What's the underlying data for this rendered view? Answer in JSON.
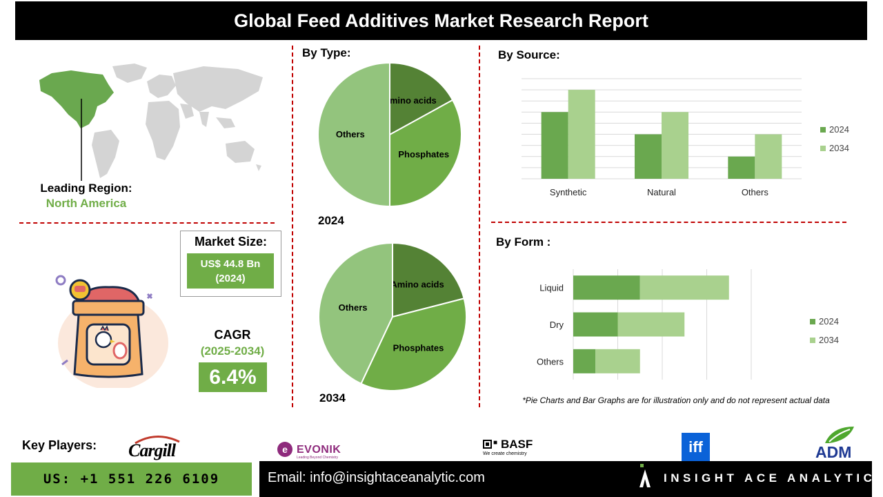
{
  "title": "Global Feed Additives Market Research Report",
  "region": {
    "label": "Leading Region:",
    "value": "North America"
  },
  "market_size": {
    "label": "Market Size:",
    "value": "US$ 44.8 Bn",
    "year": "(2024)"
  },
  "cagr": {
    "label": "CAGR",
    "period": "(2025-2034)",
    "value": "6.4%"
  },
  "sections": {
    "by_type": "By Type:",
    "by_source": "By Source:",
    "by_form": "By Form :"
  },
  "disclaimer": "*Pie Charts and Bar Graphs are for illustration only and do not represent actual data",
  "key_players": {
    "label": "Key Players:",
    "logos": [
      {
        "name": "Cargill",
        "text": "Cargill"
      },
      {
        "name": "Evonik",
        "text": "EVONIK",
        "tagline": "Leading Beyond Chemistry"
      },
      {
        "name": "BASF",
        "text": "BASF",
        "tagline": "We create chemistry"
      },
      {
        "name": "IFF",
        "text": "iff"
      },
      {
        "name": "ADM",
        "text": "ADM"
      }
    ]
  },
  "footer": {
    "phone": "US: +1 551 226 6109",
    "email": "Email: info@insightaceanalytic.com",
    "brand": "INSIGHT ACE ANALYTIC"
  },
  "colors": {
    "dark_green": "#548235",
    "mid_green": "#70ad47",
    "light_green": "#a9d18e",
    "pie_light": "#93c47d",
    "accent_red": "#c00000"
  },
  "chart_data": [
    {
      "type": "pie",
      "year_label": "2024",
      "slices": [
        {
          "label": "Amino acids",
          "value": 17,
          "color": "#548235"
        },
        {
          "label": "Phosphates",
          "value": 33,
          "color": "#70ad47"
        },
        {
          "label": "Others",
          "value": 50,
          "color": "#93c47d"
        }
      ]
    },
    {
      "type": "pie",
      "year_label": "2034",
      "slices": [
        {
          "label": "Amino acids",
          "value": 21,
          "color": "#548235"
        },
        {
          "label": "Phosphates",
          "value": 36,
          "color": "#70ad47"
        },
        {
          "label": "Others",
          "value": 43,
          "color": "#93c47d"
        }
      ]
    },
    {
      "type": "bar",
      "orientation": "vertical",
      "categories": [
        "Synthetic",
        "Natural",
        "Others"
      ],
      "series": [
        {
          "name": "2024",
          "values": [
            6,
            4,
            2
          ],
          "color": "#6aa84f"
        },
        {
          "name": "2034",
          "values": [
            8,
            6,
            4
          ],
          "color": "#a9d18e"
        }
      ],
      "ylim": [
        0,
        9
      ],
      "grid": true,
      "legend": "right"
    },
    {
      "type": "bar",
      "orientation": "horizontal",
      "stacked": true,
      "categories": [
        "Liquid",
        "Dry",
        "Others"
      ],
      "series": [
        {
          "name": "2024",
          "values": [
            3,
            2,
            1
          ],
          "color": "#6aa84f"
        },
        {
          "name": "2034",
          "values": [
            4,
            3,
            2
          ],
          "color": "#a9d18e"
        }
      ],
      "xlim": [
        0,
        8
      ],
      "grid": true,
      "legend": "right"
    }
  ]
}
